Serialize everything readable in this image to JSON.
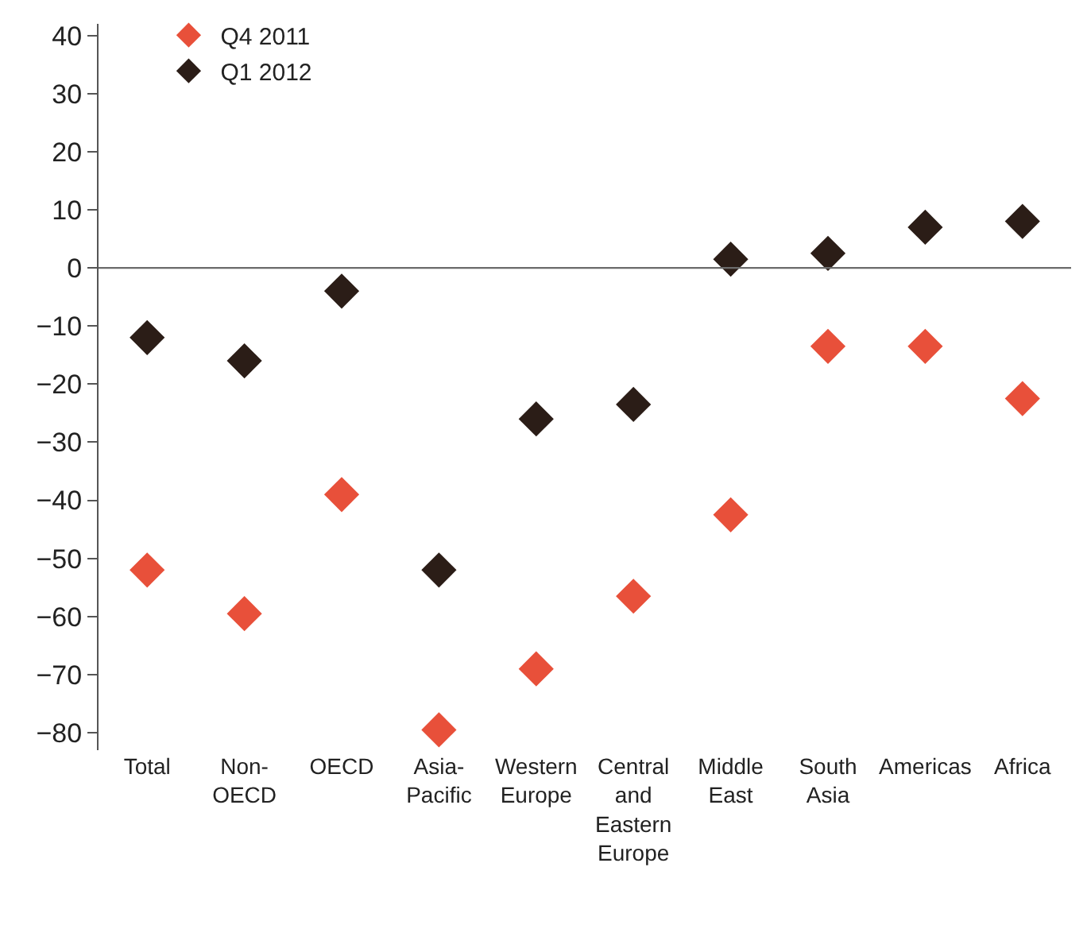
{
  "chart_data": {
    "type": "scatter",
    "categories": [
      "Total",
      "Non-OECD",
      "OECD",
      "Asia-Pacific",
      "Western Europe",
      "Central and Eastern Europe",
      "Middle East",
      "South Asia",
      "Americas",
      "Africa"
    ],
    "series": [
      {
        "name": "Q4 2011",
        "color": "#e8503a",
        "values": [
          -52,
          -59.5,
          -39,
          -79.5,
          -69,
          -56.5,
          -42.5,
          -13.5,
          -13.5,
          -22.5
        ]
      },
      {
        "name": "Q1 2012",
        "color": "#2b1d17",
        "values": [
          -12,
          -16,
          -4,
          -52,
          -26,
          -23.5,
          1.5,
          2.5,
          7,
          8
        ]
      }
    ],
    "ylim": [
      -83,
      42
    ],
    "yticks": [
      -80,
      -70,
      -60,
      -50,
      -40,
      -30,
      -20,
      -10,
      0,
      10,
      20,
      30,
      40
    ],
    "ref_lines": [
      {
        "axis": "y",
        "value": 0,
        "color": "#6b6b6b"
      }
    ],
    "grid": false,
    "legend": "top left",
    "marker": "diamond"
  }
}
